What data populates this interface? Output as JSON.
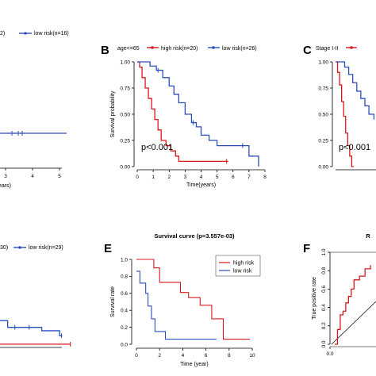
{
  "chart_data": [
    {
      "id": "A",
      "type": "line",
      "panel_label": "",
      "legend": [
        {
          "label": "2)",
          "color": "#d7191c"
        },
        {
          "label": "low risk(n=16)",
          "color": "#2b4fbd"
        }
      ],
      "xlabel": "ears)",
      "x_ticks": [
        "3",
        "4",
        "5"
      ],
      "xlim": [
        1.6,
        5.2
      ],
      "ylim": [
        0,
        1
      ],
      "series": [
        {
          "name": "low risk(n=16)",
          "color": "#2b4fbd",
          "x": [
            1.6,
            5.2
          ],
          "y": [
            0.75,
            0.75
          ],
          "censor_x": [
            2.7,
            3.45,
            3.65
          ]
        }
      ]
    },
    {
      "id": "B",
      "type": "line",
      "panel_label": "B",
      "legend": [
        {
          "label": "age<=65",
          "color": null
        },
        {
          "label": "high risk(n=20)",
          "color": "#d7191c"
        },
        {
          "label": "low risk(n=26)",
          "color": "#2b4fbd"
        }
      ],
      "xlabel": "Time(years)",
      "ylabel": "Survival probability",
      "x_ticks": [
        "0",
        "1",
        "2",
        "3",
        "4",
        "5",
        "6",
        "7",
        "8"
      ],
      "y_ticks": [
        "0.00",
        "0.25",
        "0.50",
        "0.75",
        "1.00"
      ],
      "xlim": [
        0,
        8
      ],
      "ylim": [
        0,
        1
      ],
      "annotation": "p<0.001",
      "series": [
        {
          "name": "high risk(n=20)",
          "color": "#d7191c",
          "x": [
            0,
            0.15,
            0.3,
            0.5,
            0.7,
            0.9,
            1.1,
            1.3,
            1.5,
            1.8,
            2.1,
            2.4,
            2.6,
            5.7
          ],
          "y": [
            1,
            0.95,
            0.85,
            0.75,
            0.65,
            0.55,
            0.45,
            0.35,
            0.25,
            0.2,
            0.15,
            0.1,
            0.05,
            0.05
          ],
          "censor_x": [
            5.6
          ]
        },
        {
          "name": "low risk(n=26)",
          "color": "#2b4fbd",
          "x": [
            0,
            0.8,
            1.2,
            1.6,
            2.0,
            2.3,
            2.6,
            3.0,
            3.4,
            3.7,
            4.0,
            4.5,
            5.0,
            6.5,
            7.0,
            7.6
          ],
          "y": [
            1,
            0.96,
            0.92,
            0.85,
            0.77,
            0.69,
            0.61,
            0.5,
            0.42,
            0.38,
            0.3,
            0.25,
            0.2,
            0.2,
            0.1,
            0
          ],
          "censor_x": [
            1.3,
            3.5,
            6.6
          ]
        }
      ]
    },
    {
      "id": "C",
      "type": "line",
      "panel_label": "C",
      "legend": [
        {
          "label": "Stage I-II",
          "color": null
        },
        {
          "label": "",
          "color": "#d7191c"
        }
      ],
      "xlabel": "",
      "y_ticks": [
        "0.00",
        "0.25",
        "0.50",
        "0.75",
        "1.00"
      ],
      "xlim": [
        0,
        4
      ],
      "ylim": [
        0,
        1
      ],
      "annotation": "p<0.001",
      "series": [
        {
          "name": "",
          "color": "#d7191c",
          "x": [
            0,
            0.2,
            0.4,
            0.6,
            0.8,
            1.0,
            1.2,
            1.4,
            1.6,
            1.8
          ],
          "y": [
            1,
            0.9,
            0.78,
            0.62,
            0.48,
            0.32,
            0.2,
            0.1,
            0,
            0
          ]
        },
        {
          "name": "",
          "color": "#2b4fbd",
          "x": [
            0,
            0.9,
            1.3,
            1.7,
            2.1,
            2.5,
            2.9,
            3.3,
            3.8
          ],
          "y": [
            1,
            0.95,
            0.88,
            0.8,
            0.72,
            0.65,
            0.58,
            0.5,
            0.45
          ]
        }
      ]
    },
    {
      "id": "D",
      "type": "line",
      "panel_label": "",
      "legend": [
        {
          "label": "30)",
          "color": "#d7191c"
        },
        {
          "label": "low risk(n=29)",
          "color": "#2b4fbd"
        }
      ],
      "xlim": [
        0,
        6.2
      ],
      "ylim": [
        0,
        1
      ],
      "series": [
        {
          "name": "low risk(n=29)",
          "color": "#2b4fbd",
          "x": [
            0,
            2.2,
            2.2,
            4.1,
            4.1,
            5.1,
            5.1,
            5.25
          ],
          "y": [
            0.3,
            0.3,
            0.22,
            0.22,
            0.18,
            0.18,
            0.12,
            0.12
          ],
          "censor_x": [
            2.6,
            3.4,
            5.2
          ]
        },
        {
          "name": "",
          "color": "#d7191c",
          "x": [
            0,
            5.7
          ],
          "y": [
            0.02,
            0.02
          ],
          "censor_x": [
            5.7
          ]
        }
      ]
    },
    {
      "id": "E",
      "type": "line",
      "panel_label": "E",
      "title": "Survival curve (p=3.557e-03)",
      "xlabel": "Time (year)",
      "ylabel": "Survival rate",
      "x_ticks": [
        "0",
        "2",
        "4",
        "6",
        "8",
        "10"
      ],
      "y_ticks": [
        "0.0",
        "0.2",
        "0.4",
        "0.6",
        "0.8",
        "1.0"
      ],
      "xlim": [
        0,
        10
      ],
      "ylim": [
        0,
        1
      ],
      "legend_position": "top-right",
      "legend": [
        {
          "label": "high risk",
          "color": "#d7191c"
        },
        {
          "label": "low risk",
          "color": "#2b4fbd"
        }
      ],
      "series": [
        {
          "name": "high risk",
          "color": "#d7191c",
          "x": [
            0,
            1.5,
            1.5,
            2.0,
            2.0,
            3.8,
            3.8,
            4.5,
            4.5,
            5.5,
            5.5,
            6.5,
            6.5,
            7.5,
            7.5,
            9.8
          ],
          "y": [
            1.0,
            1.0,
            0.9,
            0.9,
            0.73,
            0.73,
            0.61,
            0.61,
            0.55,
            0.55,
            0.46,
            0.46,
            0.3,
            0.3,
            0.06,
            0.06
          ]
        },
        {
          "name": "low risk",
          "color": "#2b4fbd",
          "x": [
            0,
            0.3,
            0.3,
            0.8,
            0.8,
            1.0,
            1.0,
            1.3,
            1.3,
            1.6,
            1.6,
            2.5,
            2.5,
            6.9
          ],
          "y": [
            0.86,
            0.86,
            0.72,
            0.72,
            0.6,
            0.6,
            0.45,
            0.45,
            0.3,
            0.3,
            0.15,
            0.15,
            0.06,
            0.06
          ]
        }
      ]
    },
    {
      "id": "F",
      "type": "line",
      "panel_label": "F",
      "title": "R",
      "ylabel": "True positive rate",
      "x_ticks": [
        "0.0"
      ],
      "y_ticks": [
        "0.0",
        "0.2",
        "0.4",
        "0.6",
        "0.8",
        "1.0"
      ],
      "xlim": [
        0,
        0.3
      ],
      "ylim": [
        0,
        1
      ],
      "series": [
        {
          "name": "",
          "color": "#d7191c",
          "x": [
            0,
            0.02,
            0.04,
            0.06,
            0.08,
            0.1,
            0.12,
            0.14,
            0.18,
            0.22,
            0.26
          ],
          "y": [
            0.0,
            0.16,
            0.32,
            0.36,
            0.45,
            0.52,
            0.6,
            0.7,
            0.74,
            0.82,
            0.86
          ]
        }
      ],
      "diagonal": true
    }
  ]
}
